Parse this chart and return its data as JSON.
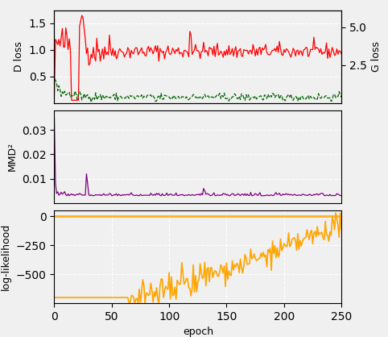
{
  "n_epochs": 251,
  "seed": 42,
  "bg_color": "#f0f0f0",
  "top_panel": {
    "d_loss_color": "red",
    "g_loss_color": "darkgreen",
    "d_loss_linestyle": "-",
    "g_loss_linestyle": "--",
    "d_loss_linewidth": 0.9,
    "g_loss_linewidth": 0.9,
    "ylabel_left": "D loss",
    "ylabel_right": "G loss",
    "ylim_left": [
      0.0,
      1.75
    ],
    "ylim_right": [
      0.0,
      6.125
    ],
    "yticks_left": [
      0.5,
      1.0,
      1.5
    ],
    "yticks_right": [
      2.5,
      5.0
    ]
  },
  "mid_panel": {
    "mmd_color": "#800080",
    "mmd_linewidth": 0.9,
    "ylabel": "MMD²",
    "ylim": [
      0.0,
      0.038
    ],
    "yticks": [
      0.01,
      0.02,
      0.03
    ]
  },
  "bot_panel": {
    "ll_color": "orange",
    "ll_ref_color": "orange",
    "ll_linewidth": 1.2,
    "ylabel": "log-likelihood",
    "ylim": [
      -750,
      50
    ],
    "yticks": [
      -500,
      -250,
      0
    ],
    "xlabel": "epoch",
    "xticks": [
      0,
      50,
      100,
      150,
      200,
      250
    ]
  },
  "figure_bg": "#f0f0f0"
}
